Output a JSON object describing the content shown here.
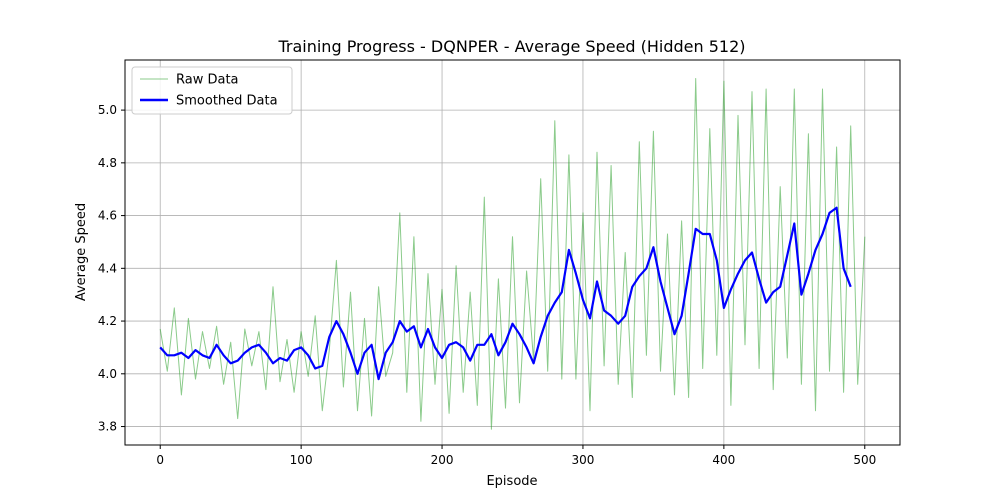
{
  "chart_data": {
    "type": "line",
    "title": "Training Progress - DQNPER - Average Speed (Hidden 512)",
    "xlabel": "Episode",
    "ylabel": "Average Speed",
    "xlim": [
      -25,
      525
    ],
    "ylim": [
      3.73,
      5.19
    ],
    "xticks": [
      0,
      100,
      200,
      300,
      400,
      500
    ],
    "yticks": [
      3.8,
      4.0,
      4.2,
      4.4,
      4.6,
      4.8,
      5.0
    ],
    "grid": true,
    "legend_position": "top-left",
    "series": [
      {
        "name": "Raw Data",
        "color": "#2ca02c",
        "x": [
          0,
          5,
          10,
          15,
          20,
          25,
          30,
          35,
          40,
          45,
          50,
          55,
          60,
          65,
          70,
          75,
          80,
          85,
          90,
          95,
          100,
          105,
          110,
          115,
          120,
          125,
          130,
          135,
          140,
          145,
          150,
          155,
          160,
          165,
          170,
          175,
          180,
          185,
          190,
          195,
          200,
          205,
          210,
          215,
          220,
          225,
          230,
          235,
          240,
          245,
          250,
          255,
          260,
          265,
          270,
          275,
          280,
          285,
          290,
          295,
          300,
          305,
          310,
          315,
          320,
          325,
          330,
          335,
          340,
          345,
          350,
          355,
          360,
          365,
          370,
          375,
          380,
          385,
          390,
          395,
          400,
          405,
          410,
          415,
          420,
          425,
          430,
          435,
          440,
          445,
          450,
          455,
          460,
          465,
          470,
          475,
          480,
          485,
          490,
          495,
          500
        ],
        "values": [
          4.17,
          4.01,
          4.25,
          3.92,
          4.21,
          3.98,
          4.16,
          4.02,
          4.18,
          3.96,
          4.12,
          3.83,
          4.17,
          4.03,
          4.16,
          3.94,
          4.33,
          3.97,
          4.13,
          3.93,
          4.16,
          3.99,
          4.22,
          3.86,
          4.09,
          4.43,
          3.95,
          4.31,
          3.86,
          4.21,
          3.84,
          4.33,
          3.99,
          4.08,
          4.61,
          3.93,
          4.52,
          3.82,
          4.38,
          3.96,
          4.32,
          3.85,
          4.41,
          3.93,
          4.31,
          3.88,
          4.67,
          3.79,
          4.36,
          3.87,
          4.52,
          3.89,
          4.39,
          4.05,
          4.74,
          4.01,
          4.96,
          3.98,
          4.83,
          3.98,
          4.61,
          3.86,
          4.84,
          4.03,
          4.79,
          3.96,
          4.46,
          3.91,
          4.88,
          4.07,
          4.92,
          4.01,
          4.53,
          3.92,
          4.58,
          3.91,
          5.12,
          4.02,
          4.93,
          4.07,
          5.11,
          3.88,
          4.98,
          4.11,
          5.07,
          4.02,
          5.08,
          3.94,
          4.71,
          4.06,
          5.08,
          3.96,
          4.91,
          3.86,
          5.08,
          4.01,
          4.86,
          3.93,
          4.94,
          3.96,
          4.52
        ]
      },
      {
        "name": "Smoothed Data",
        "color": "#0000ff",
        "x": [
          0,
          5,
          10,
          15,
          20,
          25,
          30,
          35,
          40,
          45,
          50,
          55,
          60,
          65,
          70,
          75,
          80,
          85,
          90,
          95,
          100,
          105,
          110,
          115,
          120,
          125,
          130,
          135,
          140,
          145,
          150,
          155,
          160,
          165,
          170,
          175,
          180,
          185,
          190,
          195,
          200,
          205,
          210,
          215,
          220,
          225,
          230,
          235,
          240,
          245,
          250,
          255,
          260,
          265,
          270,
          275,
          280,
          285,
          290,
          295,
          300,
          305,
          310,
          315,
          320,
          325,
          330,
          335,
          340,
          345,
          350,
          355,
          360,
          365,
          370,
          375,
          380,
          385,
          390,
          395,
          400,
          405,
          410,
          415,
          420,
          425,
          430,
          435,
          440,
          445,
          450,
          455,
          460,
          465,
          470,
          475,
          480,
          485,
          490
        ],
        "values": [
          4.1,
          4.07,
          4.07,
          4.08,
          4.06,
          4.09,
          4.07,
          4.06,
          4.11,
          4.07,
          4.04,
          4.05,
          4.08,
          4.1,
          4.11,
          4.08,
          4.04,
          4.06,
          4.05,
          4.09,
          4.1,
          4.07,
          4.02,
          4.03,
          4.14,
          4.2,
          4.15,
          4.08,
          4.0,
          4.08,
          4.11,
          3.98,
          4.08,
          4.12,
          4.2,
          4.16,
          4.18,
          4.1,
          4.17,
          4.1,
          4.06,
          4.11,
          4.12,
          4.1,
          4.05,
          4.11,
          4.11,
          4.15,
          4.07,
          4.12,
          4.19,
          4.15,
          4.1,
          4.04,
          4.14,
          4.22,
          4.27,
          4.31,
          4.47,
          4.38,
          4.28,
          4.21,
          4.35,
          4.24,
          4.22,
          4.19,
          4.22,
          4.33,
          4.37,
          4.4,
          4.48,
          4.35,
          4.25,
          4.15,
          4.22,
          4.38,
          4.55,
          4.53,
          4.53,
          4.43,
          4.25,
          4.32,
          4.38,
          4.43,
          4.46,
          4.36,
          4.27,
          4.31,
          4.33,
          4.45,
          4.57,
          4.3,
          4.38,
          4.47,
          4.53,
          4.61,
          4.63,
          4.4,
          4.33
        ]
      }
    ]
  }
}
